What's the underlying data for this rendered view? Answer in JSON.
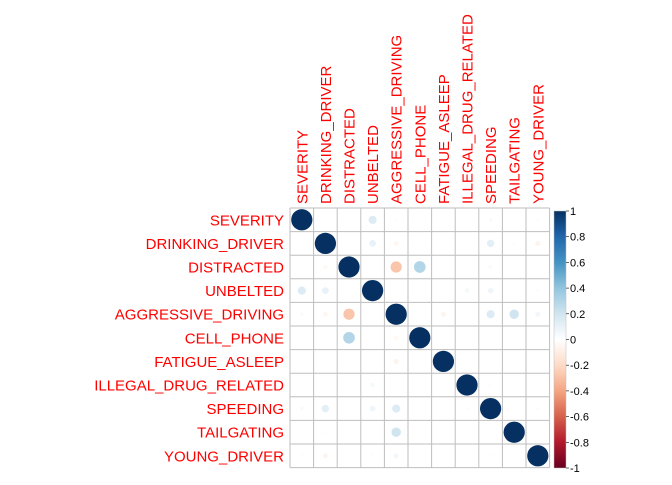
{
  "chart_data": {
    "type": "heatmap",
    "style": "corrplot-circle-upper-and-lower",
    "variables": [
      "SEVERITY",
      "DRINKING_DRIVER",
      "DISTRACTED",
      "UNBELTED",
      "AGGRESSIVE_DRIVING",
      "CELL_PHONE",
      "FATIGUE_ASLEEP",
      "ILLEGAL_DRUG_RELATED",
      "SPEEDING",
      "TAILGATING",
      "YOUNG_DRIVER"
    ],
    "matrix": [
      [
        1.0,
        0.01,
        0.0,
        0.15,
        0.02,
        0.0,
        0.0,
        0.0,
        0.03,
        0.0,
        0.02
      ],
      [
        0.01,
        1.0,
        0.01,
        0.1,
        -0.05,
        -0.01,
        0.01,
        0.0,
        0.12,
        0.02,
        -0.06
      ],
      [
        0.0,
        -0.04,
        1.0,
        0.0,
        -0.28,
        0.3,
        0.0,
        0.0,
        0.03,
        0.01,
        0.01
      ],
      [
        0.15,
        0.1,
        0.0,
        1.0,
        0.0,
        0.0,
        0.0,
        0.05,
        0.07,
        0.0,
        0.02
      ],
      [
        0.03,
        -0.05,
        -0.28,
        0.0,
        1.0,
        0.0,
        -0.06,
        0.0,
        0.15,
        0.2,
        0.06
      ],
      [
        0.0,
        -0.01,
        0.3,
        0.0,
        -0.04,
        1.0,
        0.0,
        0.0,
        0.0,
        0.0,
        0.0
      ],
      [
        0.0,
        0.0,
        0.0,
        0.0,
        -0.06,
        0.0,
        1.0,
        0.0,
        0.0,
        0.0,
        0.0
      ],
      [
        0.0,
        0.0,
        0.0,
        0.05,
        0.01,
        0.0,
        0.0,
        1.0,
        0.02,
        0.0,
        0.0
      ],
      [
        0.03,
        0.12,
        0.0,
        0.07,
        0.15,
        0.0,
        0.0,
        0.02,
        1.0,
        0.0,
        0.02
      ],
      [
        0.0,
        0.02,
        0.0,
        0.0,
        0.2,
        0.0,
        0.0,
        0.0,
        0.0,
        1.0,
        0.0
      ],
      [
        0.02,
        -0.06,
        0.0,
        0.02,
        0.06,
        0.0,
        0.0,
        0.0,
        0.02,
        0.0,
        1.0
      ]
    ],
    "color_range": [
      -1,
      1
    ],
    "colorbar_ticks": [
      "1",
      "0.8",
      "0.6",
      "0.4",
      "0.2",
      "0",
      "-0.2",
      "-0.4",
      "-0.6",
      "-0.8",
      "-1"
    ],
    "colorscale": [
      "#67001F",
      "#B2182B",
      "#D6604D",
      "#F4A582",
      "#FDDBC7",
      "#FFFFFF",
      "#D1E5F0",
      "#92C5DE",
      "#4393C3",
      "#2166AC",
      "#053061"
    ],
    "label_color": "#FF0000",
    "grid_color": "#BEBEBE"
  }
}
